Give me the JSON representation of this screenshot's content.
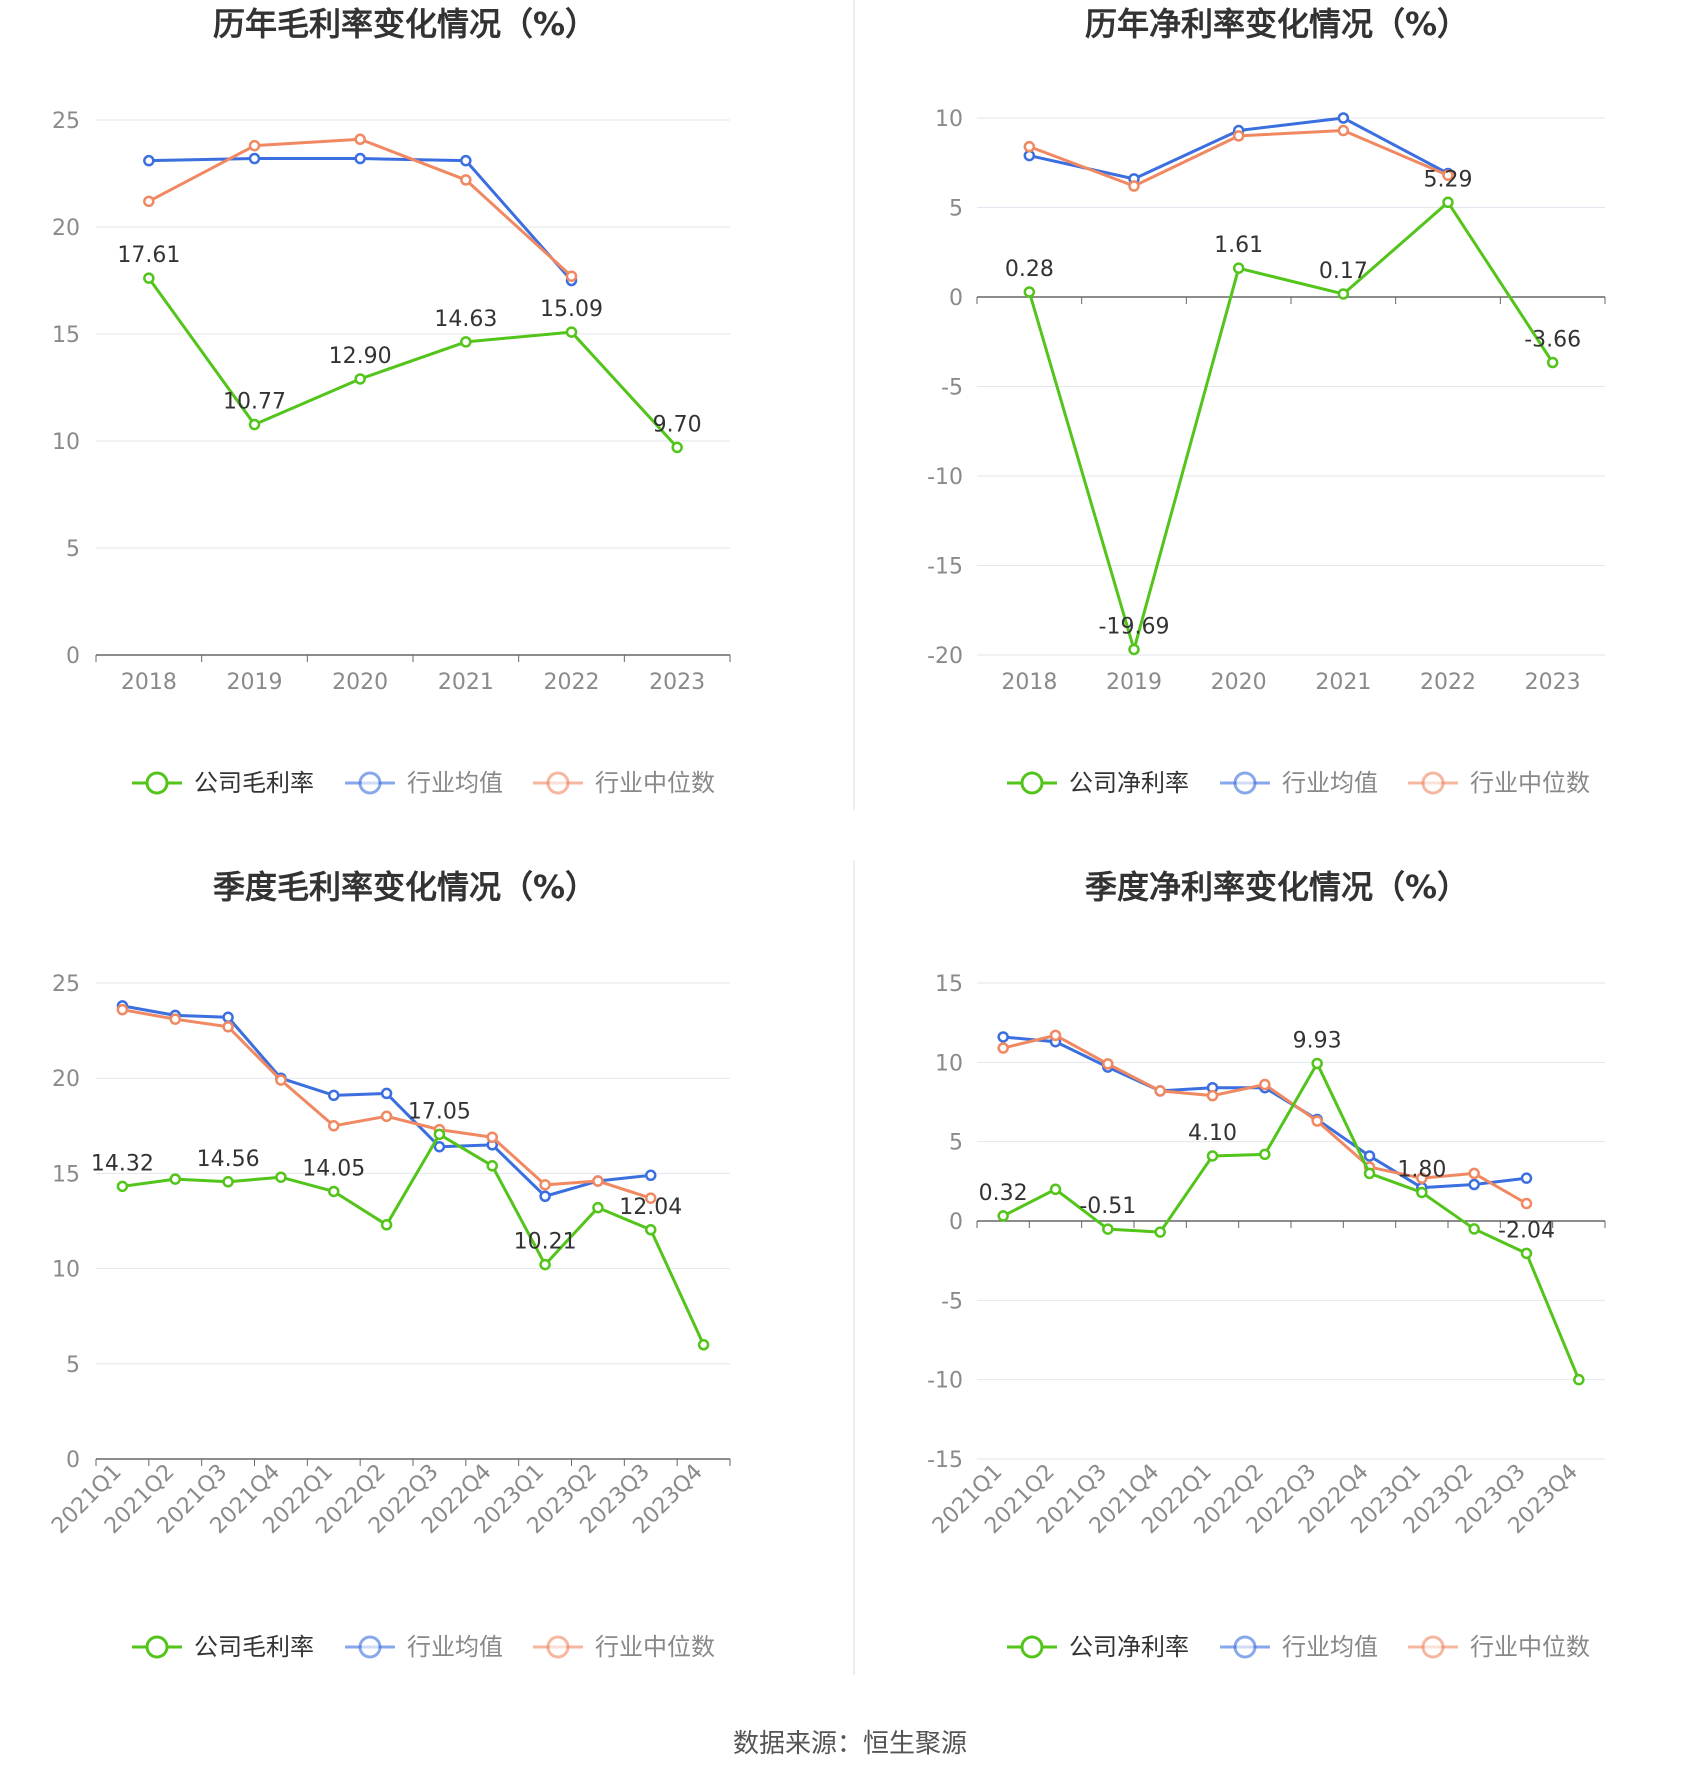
{
  "source": "数据来源：恒生聚源",
  "colors": {
    "company": "#52c41a",
    "avg": "#3b6fe0",
    "median": "#f08862",
    "grid": "#e3e6ee",
    "axis": "#666666"
  },
  "chart_data": [
    {
      "type": "line",
      "title": "历年毛利率变化情况（%）",
      "categories": [
        "2018",
        "2019",
        "2020",
        "2021",
        "2022",
        "2023"
      ],
      "ylim": [
        0,
        25
      ],
      "yticks": [
        0,
        5,
        10,
        15,
        20,
        25
      ],
      "legend": "bottom",
      "labeled_series": 0,
      "series": [
        {
          "name": "公司毛利率",
          "values": [
            17.61,
            10.77,
            12.9,
            14.63,
            15.09,
            9.7
          ],
          "labels": [
            "17.61",
            "10.77",
            "12.90",
            "14.63",
            "15.09",
            "9.70"
          ]
        },
        {
          "name": "行业均值",
          "values": [
            23.1,
            23.2,
            23.2,
            23.1,
            17.5,
            null
          ]
        },
        {
          "name": "行业中位数",
          "values": [
            21.2,
            23.8,
            24.1,
            22.2,
            17.7,
            null
          ]
        }
      ]
    },
    {
      "type": "line",
      "title": "历年净利率变化情况（%）",
      "categories": [
        "2018",
        "2019",
        "2020",
        "2021",
        "2022",
        "2023"
      ],
      "ylim": [
        -20,
        10
      ],
      "yticks": [
        -20,
        -15,
        -10,
        -5,
        0,
        5,
        10
      ],
      "legend": "bottom",
      "labeled_series": 0,
      "series": [
        {
          "name": "公司净利率",
          "values": [
            0.28,
            -19.69,
            1.61,
            0.17,
            5.29,
            -3.66
          ],
          "labels": [
            "0.28",
            "-19.69",
            "1.61",
            "0.17",
            "5.29",
            "-3.66"
          ]
        },
        {
          "name": "行业均值",
          "values": [
            7.9,
            6.6,
            9.3,
            10.0,
            6.9,
            null
          ]
        },
        {
          "name": "行业中位数",
          "values": [
            8.4,
            6.2,
            9.0,
            9.3,
            6.8,
            null
          ]
        }
      ]
    },
    {
      "type": "line",
      "title": "季度毛利率变化情况（%）",
      "categories": [
        "2021Q1",
        "2021Q2",
        "2021Q3",
        "2021Q4",
        "2022Q1",
        "2022Q2",
        "2022Q3",
        "2022Q4",
        "2023Q1",
        "2023Q2",
        "2023Q3",
        "2023Q4"
      ],
      "ylim": [
        0,
        25
      ],
      "yticks": [
        0,
        5,
        10,
        15,
        20,
        25
      ],
      "legend": "bottom",
      "labeled_series": 0,
      "series": [
        {
          "name": "公司毛利率",
          "values": [
            14.32,
            14.7,
            14.56,
            14.8,
            14.05,
            12.3,
            17.05,
            15.4,
            10.21,
            13.2,
            12.04,
            6.0
          ],
          "labels": [
            "14.32",
            "",
            "14.56",
            "",
            "14.05",
            "",
            "17.05",
            "",
            "10.21",
            "",
            "12.04",
            ""
          ]
        },
        {
          "name": "行业均值",
          "values": [
            23.8,
            23.3,
            23.2,
            20.0,
            19.1,
            19.2,
            16.4,
            16.5,
            13.8,
            14.6,
            14.9,
            null
          ]
        },
        {
          "name": "行业中位数",
          "values": [
            23.6,
            23.1,
            22.7,
            19.9,
            17.5,
            18.0,
            17.3,
            16.9,
            14.4,
            14.6,
            13.7,
            null
          ]
        }
      ]
    },
    {
      "type": "line",
      "title": "季度净利率变化情况（%）",
      "categories": [
        "2021Q1",
        "2021Q2",
        "2021Q3",
        "2021Q4",
        "2022Q1",
        "2022Q2",
        "2022Q3",
        "2022Q4",
        "2023Q1",
        "2023Q2",
        "2023Q3",
        "2023Q4"
      ],
      "ylim": [
        -15,
        15
      ],
      "yticks": [
        -15,
        -10,
        -5,
        0,
        5,
        10,
        15
      ],
      "legend": "bottom",
      "labeled_series": 0,
      "series": [
        {
          "name": "公司净利率",
          "values": [
            0.32,
            2.0,
            -0.51,
            -0.7,
            4.1,
            4.2,
            9.93,
            3.0,
            1.8,
            -0.5,
            -2.04,
            -10.0
          ],
          "labels": [
            "0.32",
            "",
            "-0.51",
            "",
            "4.10",
            "",
            "9.93",
            "",
            "1.80",
            "",
            "-2.04",
            ""
          ]
        },
        {
          "name": "行业均值",
          "values": [
            11.6,
            11.3,
            9.7,
            8.2,
            8.4,
            8.4,
            6.4,
            4.1,
            2.1,
            2.3,
            2.7,
            null
          ]
        },
        {
          "name": "行业中位数",
          "values": [
            10.9,
            11.7,
            9.9,
            8.2,
            7.9,
            8.6,
            6.3,
            3.4,
            2.7,
            3.0,
            1.1,
            null
          ]
        }
      ]
    }
  ]
}
